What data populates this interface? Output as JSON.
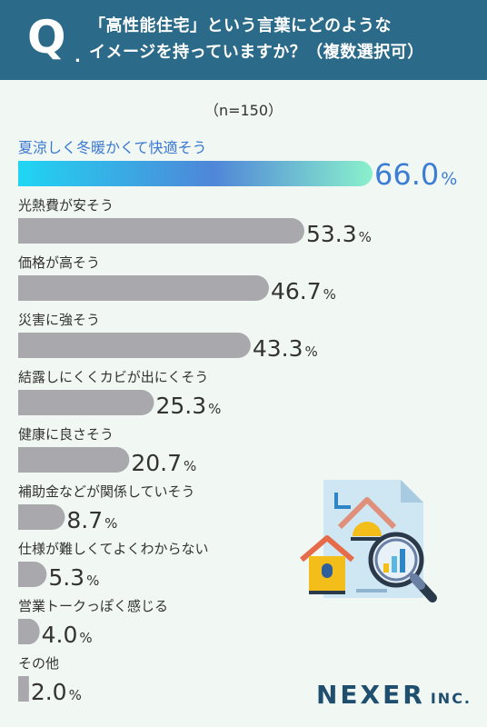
{
  "header": {
    "q_mark": "Q",
    "q_dot": ".",
    "line1": "「高性能住宅」という言葉にどのような",
    "line2": "イメージを持っていますか？（複数選択可）"
  },
  "sample_note": "（n=150）",
  "colors": {
    "header_bg": "#2b6a88",
    "bar_gray": "#a9a9ad",
    "top_bar_gradient": [
      "#20d4f2",
      "#4f86d8",
      "#8af0cc"
    ],
    "top_text": "#3b7dd4",
    "background": "#f1f8f3"
  },
  "chart_data": {
    "type": "bar",
    "orientation": "horizontal",
    "unit": "%",
    "categories": [
      "夏涼しく冬暖かくて快適そう",
      "光熱費が安そう",
      "価格が高そう",
      "災害に強そう",
      "結露しにくくカビが出にくそう",
      "健康に良さそう",
      "補助金などが関係していそう",
      "仕様が難しくてよくわからない",
      "営業トークっぽく感じる",
      "その他"
    ],
    "values": [
      66.0,
      53.3,
      46.7,
      43.3,
      25.3,
      20.7,
      8.7,
      5.3,
      4.0,
      2.0
    ],
    "value_labels": [
      "66.0",
      "53.3",
      "46.7",
      "43.3",
      "25.3",
      "20.7",
      "8.7",
      "5.3",
      "4.0",
      "2.0"
    ],
    "highlight_index": 0,
    "xlim": [
      0,
      66.0
    ]
  },
  "logo": {
    "main": "NEXER",
    "sub": "INC."
  },
  "illustration_icon": "house-document-magnifier-icon"
}
